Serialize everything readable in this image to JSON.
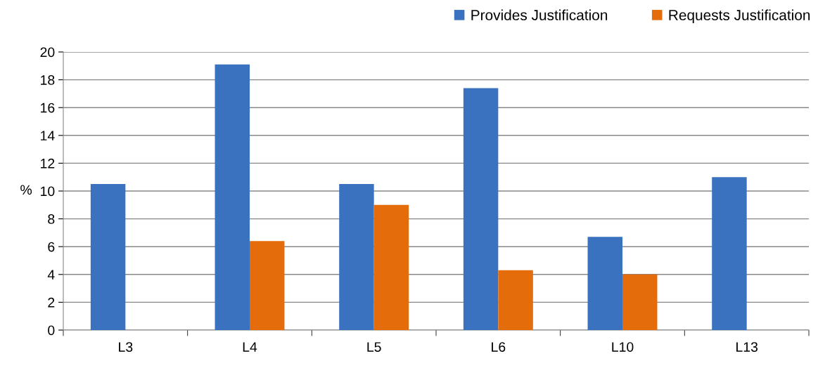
{
  "chart_data": {
    "type": "bar",
    "ylabel": "%",
    "categories": [
      "L3",
      "L4",
      "L5",
      "L6",
      "L10",
      "L13"
    ],
    "series": [
      {
        "name": "Provides Justification",
        "color": "#3a72c0",
        "values": [
          10.5,
          19.1,
          10.5,
          17.4,
          6.7,
          11.0
        ]
      },
      {
        "name": "Requests Justification",
        "color": "#e46c0a",
        "values": [
          0,
          6.4,
          9.0,
          4.3,
          4.0,
          0
        ]
      }
    ],
    "ylim": [
      0,
      20
    ],
    "yticks": [
      0,
      2,
      4,
      6,
      8,
      10,
      12,
      14,
      16,
      18,
      20
    ],
    "grid": "y",
    "legend": "top right"
  }
}
